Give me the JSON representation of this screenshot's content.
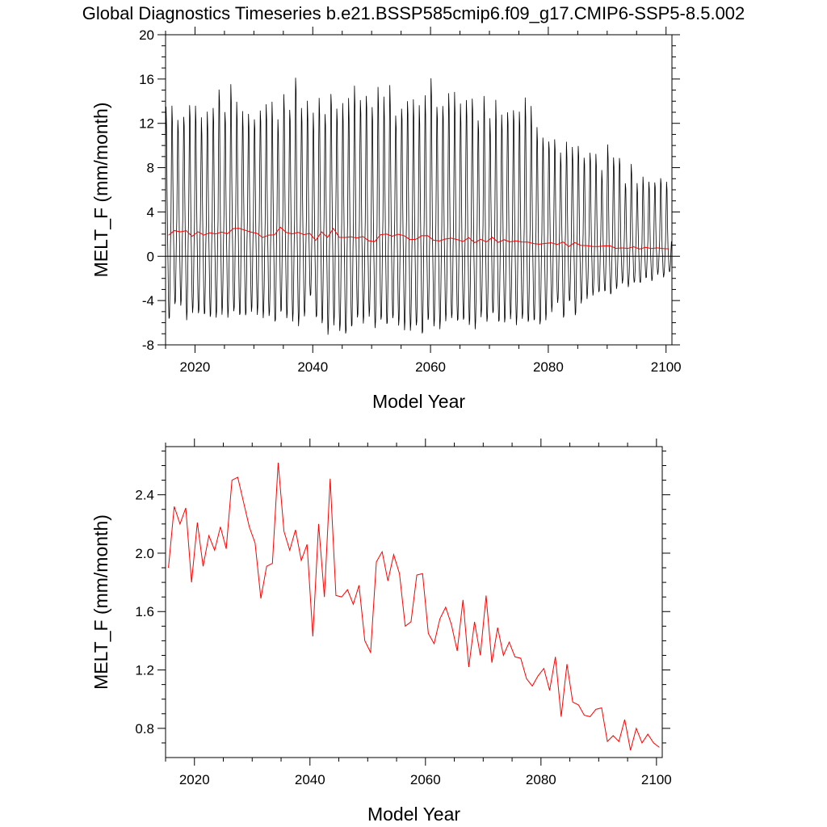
{
  "title": "Global Diagnostics Timeseries b.e21.BSSP585cmip6.f09_g17.CMIP6-SSP5-8.5.002",
  "chart_data": [
    {
      "type": "line",
      "xlabel": "Model Year",
      "ylabel": "MELT_F (mm/month)",
      "xlim": [
        2015,
        2101
      ],
      "ylim": [
        -8,
        20
      ],
      "xticks": [
        "2020",
        "2040",
        "2060",
        "2080",
        "2100"
      ],
      "yticks": [
        "-8",
        "-4",
        "0",
        "4",
        "8",
        "12",
        "16",
        "20"
      ],
      "zero_line": true,
      "series": [
        {
          "color": "#000000",
          "note_monthly": "monthly values, seasonal cycle",
          "monthly_peak_max": [
            13.6,
            13.9,
            12.8,
            13.1,
            14.0,
            13.7,
            12.6,
            13.3,
            13.9,
            15.7,
            13.4,
            15.7,
            14.0,
            13.3,
            13.3,
            12.9,
            13.6,
            13.9,
            14.0,
            12.5,
            15.1,
            13.8,
            16.7,
            13.6,
            14.1,
            13.1,
            14.7,
            13.4,
            15.2,
            13.6,
            13.9,
            14.4,
            15.8,
            14.7,
            15.1,
            13.8,
            15.4,
            14.5,
            15.8,
            13.2,
            13.9,
            14.4,
            14.3,
            13.7,
            14.8,
            16.7,
            14.1,
            14.0,
            14.9,
            14.9,
            14.0,
            14.6,
            14.9,
            12.7,
            14.7,
            12.5,
            14.3,
            13.2,
            13.6,
            13.7,
            13.3,
            14.4,
            13.7,
            12.0,
            11.2,
            10.8,
            10.8,
            9.4,
            10.4,
            10.1,
            10.4,
            9.3,
            9.6,
            9.3,
            7.8,
            10.3,
            9.3,
            9.3,
            6.8,
            8.4,
            6.6,
            7.3,
            7.0,
            7.0,
            7.3,
            6.8
          ],
          "monthly_trough_min": [
            -5.9,
            -4.4,
            -4.4,
            -5.7,
            -5.2,
            -5.4,
            -5.5,
            -5.6,
            -5.5,
            -5.2,
            -5.6,
            -5.2,
            -5.6,
            -5.5,
            -5.0,
            -5.2,
            -5.6,
            -5.6,
            -6.2,
            -5.2,
            -5.6,
            -5.8,
            -6.3,
            -5.6,
            -3.8,
            -5.7,
            -6.1,
            -7.0,
            -6.2,
            -6.9,
            -7.3,
            -6.6,
            -5.6,
            -6.0,
            -5.4,
            -6.6,
            -6.0,
            -6.4,
            -5.7,
            -6.2,
            -6.6,
            -6.8,
            -6.5,
            -7.3,
            -5.9,
            -6.3,
            -6.5,
            -5.9,
            -5.8,
            -6.1,
            -5.9,
            -6.2,
            -6.5,
            -5.5,
            -6.1,
            -5.4,
            -6.1,
            -6.0,
            -5.6,
            -6.2,
            -5.8,
            -6.2,
            -6.0,
            -6.2,
            -5.7,
            -5.0,
            -4.3,
            -5.8,
            -4.2,
            -5.4,
            -4.2,
            -3.8,
            -3.6,
            -3.4,
            -3.3,
            -3.5,
            -2.9,
            -2.4,
            -2.8,
            -2.5,
            -2.5,
            -2.0,
            -2.2,
            -1.6,
            -1.9,
            -1.5
          ]
        },
        {
          "color": "#ff0000",
          "note": "annual mean"
        }
      ]
    },
    {
      "type": "line",
      "xlabel": "Model Year",
      "ylabel": "MELT_F (mm/month)",
      "xlim": [
        2015,
        2101
      ],
      "ylim": [
        0.6,
        2.73
      ],
      "xticks": [
        "2020",
        "2040",
        "2060",
        "2080",
        "2100"
      ],
      "yticks": [
        "0.8",
        "1.2",
        "1.6",
        "2.0",
        "2.4"
      ],
      "x": [
        2015,
        2016,
        2017,
        2018,
        2019,
        2020,
        2021,
        2022,
        2023,
        2024,
        2025,
        2026,
        2027,
        2028,
        2029,
        2030,
        2031,
        2032,
        2033,
        2034,
        2035,
        2036,
        2037,
        2038,
        2039,
        2040,
        2041,
        2042,
        2043,
        2044,
        2045,
        2046,
        2047,
        2048,
        2049,
        2050,
        2051,
        2052,
        2053,
        2054,
        2055,
        2056,
        2057,
        2058,
        2059,
        2060,
        2061,
        2062,
        2063,
        2064,
        2065,
        2066,
        2067,
        2068,
        2069,
        2070,
        2071,
        2072,
        2073,
        2074,
        2075,
        2076,
        2077,
        2078,
        2079,
        2080,
        2081,
        2082,
        2083,
        2084,
        2085,
        2086,
        2087,
        2088,
        2089,
        2090,
        2091,
        2092,
        2093,
        2094,
        2095,
        2096,
        2097,
        2098,
        2099,
        2100
      ],
      "series": [
        {
          "color": "#ff0000",
          "values": [
            1.9,
            2.32,
            2.2,
            2.31,
            1.8,
            2.21,
            1.91,
            2.12,
            2.02,
            2.18,
            2.03,
            2.5,
            2.52,
            2.35,
            2.18,
            2.07,
            1.69,
            1.91,
            1.93,
            2.62,
            2.15,
            2.02,
            2.16,
            1.95,
            2.06,
            1.43,
            2.2,
            1.7,
            2.51,
            1.71,
            1.7,
            1.75,
            1.65,
            1.78,
            1.4,
            1.32,
            1.94,
            2.01,
            1.81,
            1.99,
            1.86,
            1.5,
            1.53,
            1.85,
            1.86,
            1.45,
            1.38,
            1.55,
            1.63,
            1.51,
            1.33,
            1.68,
            1.22,
            1.53,
            1.3,
            1.71,
            1.25,
            1.49,
            1.3,
            1.39,
            1.29,
            1.28,
            1.14,
            1.09,
            1.16,
            1.21,
            1.06,
            1.29,
            0.88,
            1.24,
            0.98,
            0.96,
            0.89,
            0.88,
            0.93,
            0.94,
            0.71,
            0.75,
            0.71,
            0.86,
            0.65,
            0.8,
            0.7,
            0.76,
            0.7,
            0.67
          ]
        }
      ]
    }
  ]
}
